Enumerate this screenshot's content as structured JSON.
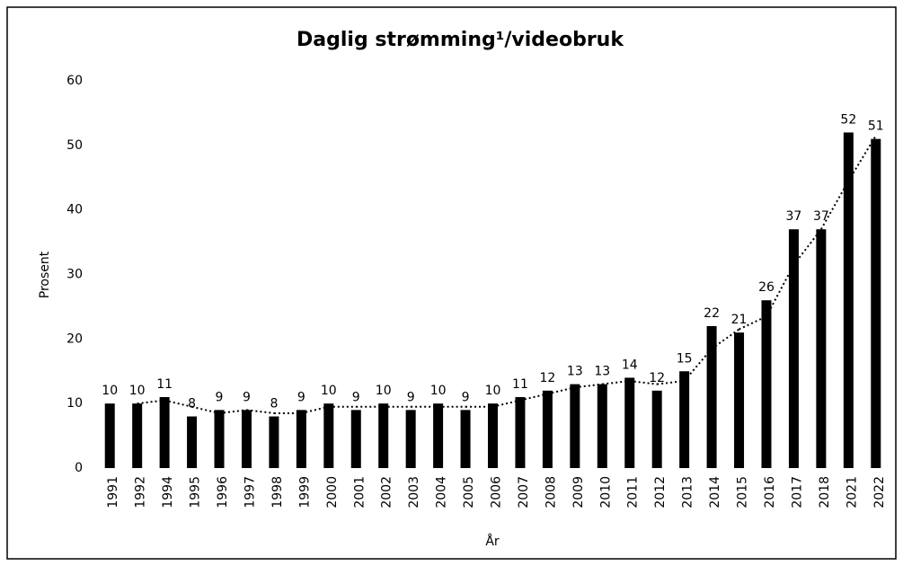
{
  "chart_data": {
    "type": "bar",
    "title": "Daglig strømming¹/videobruk",
    "x_label": "År",
    "y_label": "Prosent",
    "categories": [
      "1991",
      "1992",
      "1994",
      "1995",
      "1996",
      "1997",
      "1998",
      "1999",
      "2000",
      "2001",
      "2002",
      "2003",
      "2004",
      "2005",
      "2006",
      "2007",
      "2008",
      "2009",
      "2010",
      "2011",
      "2012",
      "2013",
      "2014",
      "2015",
      "2016",
      "2017",
      "2018",
      "2021",
      "2022"
    ],
    "values": [
      10,
      10,
      11,
      8,
      9,
      9,
      8,
      9,
      10,
      9,
      10,
      9,
      10,
      9,
      10,
      11,
      12,
      13,
      13,
      14,
      12,
      15,
      22,
      21,
      26,
      37,
      37,
      52,
      51
    ],
    "color": "#000000",
    "ylim": [
      0,
      60
    ],
    "yticks": [
      0,
      10,
      20,
      30,
      40,
      50,
      60
    ],
    "grid": false,
    "trendline": {
      "type": "moving-average",
      "period": 2,
      "color": "#000000"
    }
  }
}
